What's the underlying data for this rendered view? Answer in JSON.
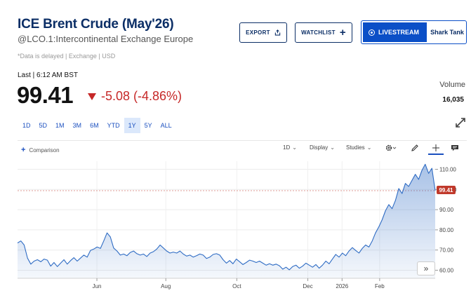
{
  "header": {
    "title": "ICE Brent Crude (May'26)",
    "symbol_line": "@LCO.1:Intercontinental Exchange Europe",
    "delayed_note": "*Data is delayed | Exchange | USD"
  },
  "actions": {
    "export_label": "EXPORT",
    "watchlist_label": "WATCHLIST",
    "livestream_label": "LIVESTREAM",
    "livestream_show": "Shark Tank"
  },
  "quote": {
    "last_label": "Last | 6:12 AM BST",
    "price": "99.41",
    "change": "-5.08 (-4.86%)",
    "volume_label": "Volume",
    "volume_value": "16,035"
  },
  "ranges": [
    "1D",
    "5D",
    "1M",
    "3M",
    "6M",
    "YTD",
    "1Y",
    "5Y",
    "ALL"
  ],
  "active_range": "1Y",
  "chart_toolbar": {
    "comparison_label": "Comparison",
    "interval_label": "1D",
    "display_label": "Display",
    "studies_label": "Studies"
  },
  "colors": {
    "accent": "#0b2e66",
    "link": "#1a4fbf",
    "down": "#c62828",
    "line": "#2f6cc4",
    "price_tag": "#c0392b"
  },
  "chart_data": {
    "type": "area",
    "x_tick_labels": [
      "Jun",
      "Aug",
      "Oct",
      "Dec",
      "2026",
      "Feb"
    ],
    "y_tick_labels": [
      "110.00",
      "100.00",
      "90.00",
      "80.00",
      "70.00",
      "60.00"
    ],
    "ylim": [
      56,
      114
    ],
    "last_price_label": "99.41",
    "series": [
      {
        "values": [
          73.5,
          74.5,
          72.5,
          66,
          63,
          64.5,
          65.2,
          64.2,
          65.5,
          65,
          62,
          63.8,
          61.8,
          63.5,
          65.2,
          63,
          64.8,
          66.2,
          64.5,
          66,
          67.5,
          66.5,
          69.8,
          70.5,
          71.5,
          70.8,
          74.5,
          78.5,
          76.5,
          71,
          69.5,
          67.5,
          68,
          67.2,
          68.8,
          69.5,
          68.2,
          67.5,
          68,
          66.8,
          68.5,
          69.2,
          70.5,
          72.5,
          71,
          69.5,
          68.5,
          69,
          68.5,
          69.5,
          68,
          67,
          67.5,
          66.5,
          67.2,
          68,
          67.5,
          65.8,
          66.5,
          67.8,
          68.2,
          67.5,
          65.2,
          63.5,
          64.8,
          63.2,
          65.5,
          64.2,
          62.8,
          63.8,
          65,
          64.5,
          63.8,
          64.5,
          63.5,
          62.5,
          63.2,
          62.5,
          63,
          62.2,
          60.5,
          61.5,
          60.2,
          61.8,
          62.5,
          61,
          62,
          63.5,
          62.5,
          61.5,
          62.8,
          61,
          62.5,
          64.5,
          63.2,
          65.5,
          67.8,
          66.5,
          68.5,
          67.2,
          69.5,
          71.2,
          69.8,
          68.5,
          70.8,
          72.5,
          71.5,
          74.5,
          78.5,
          81.5,
          85,
          89.5,
          92.5,
          90.5,
          94.5,
          100.5,
          98,
          103,
          101.5,
          104.5,
          107.5,
          105,
          109.5,
          112.5,
          108,
          110.5,
          99.41
        ]
      }
    ]
  }
}
